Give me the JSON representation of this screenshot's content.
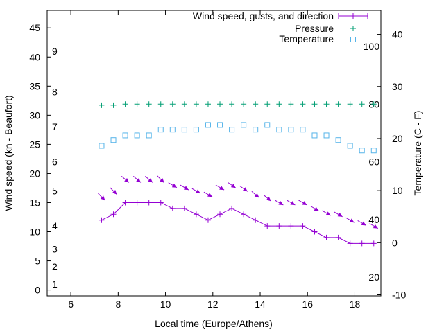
{
  "chart_data": {
    "type": "line",
    "xlabel": "Local time (Europe/Athens)",
    "ylabel": "Wind speed (kn - Beaufort)",
    "y2label": "Temperature (C - F)",
    "xlim": [
      5,
      19.1
    ],
    "ylim": [
      -1,
      48
    ],
    "y2lim": [
      -10.2,
      44.6
    ],
    "x_ticks": [
      6,
      8,
      10,
      12,
      14,
      16,
      18
    ],
    "y_ticks": [
      0,
      5,
      10,
      15,
      20,
      25,
      30,
      35,
      40,
      45
    ],
    "y2_ticks": [
      -10,
      0,
      10,
      20,
      30,
      40
    ],
    "beaufort_labels": [
      {
        "label": "1",
        "kn": 1
      },
      {
        "label": "2",
        "kn": 4
      },
      {
        "label": "3",
        "kn": 7
      },
      {
        "label": "4",
        "kn": 11
      },
      {
        "label": "5",
        "kn": 17
      },
      {
        "label": "6",
        "kn": 22
      },
      {
        "label": "7",
        "kn": 28
      },
      {
        "label": "8",
        "kn": 34
      },
      {
        "label": "9",
        "kn": 41
      }
    ],
    "fahrenheit_labels": [
      {
        "label": "20",
        "value": 20
      },
      {
        "label": "40",
        "value": 40
      },
      {
        "label": "60",
        "value": 60
      },
      {
        "label": "80",
        "value": 80
      },
      {
        "label": "100",
        "value": 100
      }
    ],
    "legend": {
      "position": "top-right",
      "entries": [
        "Wind speed, gusts, and direction",
        "Pressure",
        "Temperature"
      ]
    },
    "x": [
      7.3,
      7.8,
      8.3,
      8.8,
      9.3,
      9.8,
      10.3,
      10.8,
      11.3,
      11.8,
      12.3,
      12.8,
      13.3,
      13.8,
      14.3,
      14.8,
      15.3,
      15.8,
      16.3,
      16.8,
      17.3,
      17.8,
      18.3,
      18.8
    ],
    "series": [
      {
        "name": "Wind speed",
        "color": "#9400d3",
        "values": [
          12,
          13,
          15,
          15,
          15,
          15,
          14,
          14,
          13,
          12,
          13,
          14,
          13,
          12,
          11,
          11,
          11,
          11,
          10,
          9,
          9,
          8,
          8,
          8
        ]
      },
      {
        "name": "Gusts",
        "color": "#9400d3",
        "values": [
          16,
          17,
          19,
          19,
          19,
          19,
          18,
          17.6,
          17,
          16.4,
          17.6,
          18,
          17.4,
          16.4,
          15.8,
          15,
          15,
          15,
          14,
          13.2,
          13,
          12,
          11.5,
          11
        ],
        "direction_deg": [
          315,
          315,
          310,
          310,
          310,
          315,
          300,
          300,
          300,
          300,
          300,
          305,
          305,
          310,
          310,
          300,
          300,
          300,
          300,
          300,
          300,
          300,
          300,
          300
        ]
      },
      {
        "name": "Pressure",
        "color": "#009e73",
        "values": [
          79.6,
          79.6,
          80,
          80,
          80,
          80,
          80,
          80,
          80,
          80,
          80,
          80,
          80,
          80,
          80,
          80,
          80,
          80,
          80,
          80,
          80,
          80,
          80,
          80
        ]
      },
      {
        "name": "Temperature",
        "color": "#56b4e9",
        "values": [
          18.6,
          19.7,
          20.6,
          20.6,
          20.6,
          21.7,
          21.7,
          21.7,
          21.7,
          22.6,
          22.6,
          21.7,
          22.6,
          21.7,
          22.6,
          21.7,
          21.7,
          21.7,
          20.6,
          20.6,
          19.7,
          18.6,
          17.7,
          17.7
        ]
      }
    ]
  }
}
